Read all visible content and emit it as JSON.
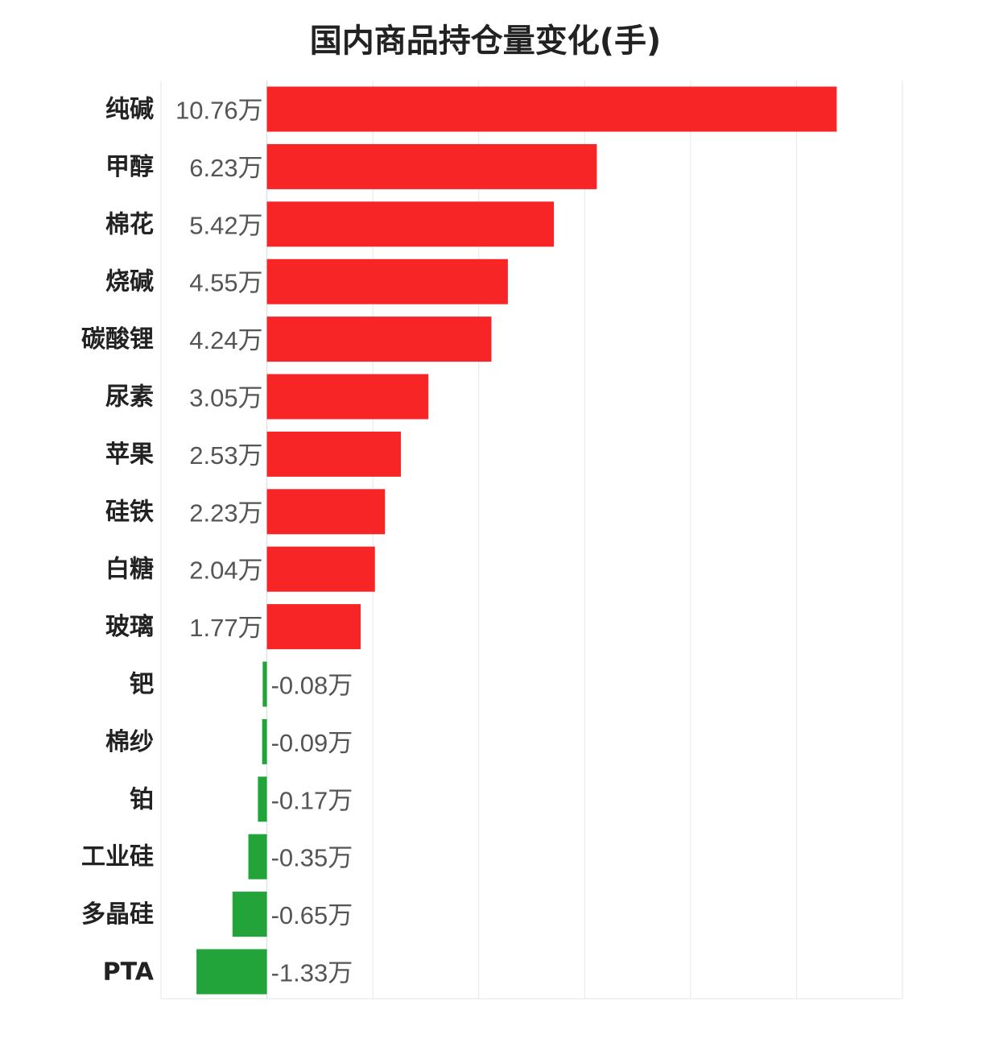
{
  "chart_data": {
    "type": "bar",
    "orientation": "horizontal",
    "title": "国内商品持仓量变化(手)",
    "xlabel": "",
    "ylabel": "",
    "unit_suffix": "万",
    "categories": [
      "纯碱",
      "甲醇",
      "棉花",
      "烧碱",
      "碳酸锂",
      "尿素",
      "苹果",
      "硅铁",
      "白糖",
      "玻璃",
      "钯",
      "棉纱",
      "铂",
      "工业硅",
      "多晶硅",
      "PTA"
    ],
    "values": [
      10.76,
      6.23,
      5.42,
      4.55,
      4.24,
      3.05,
      2.53,
      2.23,
      2.04,
      1.77,
      -0.08,
      -0.09,
      -0.17,
      -0.35,
      -0.65,
      -1.33
    ],
    "value_labels": [
      "10.76万",
      "6.23万",
      "5.42万",
      "4.55万",
      "4.24万",
      "3.05万",
      "2.53万",
      "2.23万",
      "2.04万",
      "1.77万",
      "-0.08万",
      "-0.09万",
      "-0.17万",
      "-0.35万",
      "-0.65万",
      "-1.33万"
    ],
    "xlim": [
      -2,
      12
    ],
    "grid": true,
    "legend": "none",
    "colors": {
      "positive": "#f82527",
      "negative": "#22a43a",
      "grid": "#e6e6e6"
    }
  }
}
